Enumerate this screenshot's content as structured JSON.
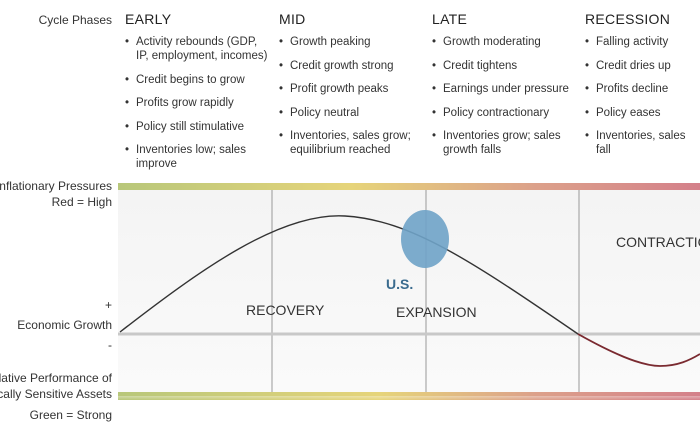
{
  "left_labels": {
    "cycle_phases": "Cycle Phases",
    "inflationary_pressures": "Inflationary Pressures",
    "red_high": "Red = High",
    "plus": "+",
    "economic_growth": "Economic Growth",
    "minus": "-",
    "relative_performance_1": "Relative Performance of",
    "relative_performance_2": "omically Sensitive Assets",
    "green_strong": "Green = Strong"
  },
  "phases": [
    {
      "name": "EARLY",
      "bullets": [
        "Activity rebounds (GDP, IP, employment, incomes)",
        "Credit begins to grow",
        "Profits grow rapidly",
        "Policy still stimulative",
        "Inventories low; sales improve"
      ]
    },
    {
      "name": "MID",
      "bullets": [
        "Growth peaking",
        "Credit growth strong",
        "Profit growth peaks",
        "Policy neutral",
        "Inventories, sales grow; equilibrium reached"
      ]
    },
    {
      "name": "LATE",
      "bullets": [
        "Growth moderating",
        "Credit tightens",
        "Earnings under pressure",
        "Policy contractionary",
        "Inventories grow; sales growth falls"
      ]
    },
    {
      "name": "RECESSION",
      "bullets": [
        "Falling activity",
        "Credit dries up",
        "Profits decline",
        "Policy eases",
        "Inventories, sales fall"
      ]
    }
  ],
  "regions": {
    "recovery": "RECOVERY",
    "expansion": "EXPANSION",
    "contraction": "CONTRACTION",
    "us_marker": "U.S."
  },
  "colors": {
    "bar_green": "#b8c77a",
    "bar_yellow": "#e6d47a",
    "bar_red": "#d4808a",
    "curve_positive": "#333333",
    "curve_negative": "#7a2a30",
    "us_circle": "#6fa3c8",
    "us_text": "#3a6b8e"
  }
}
